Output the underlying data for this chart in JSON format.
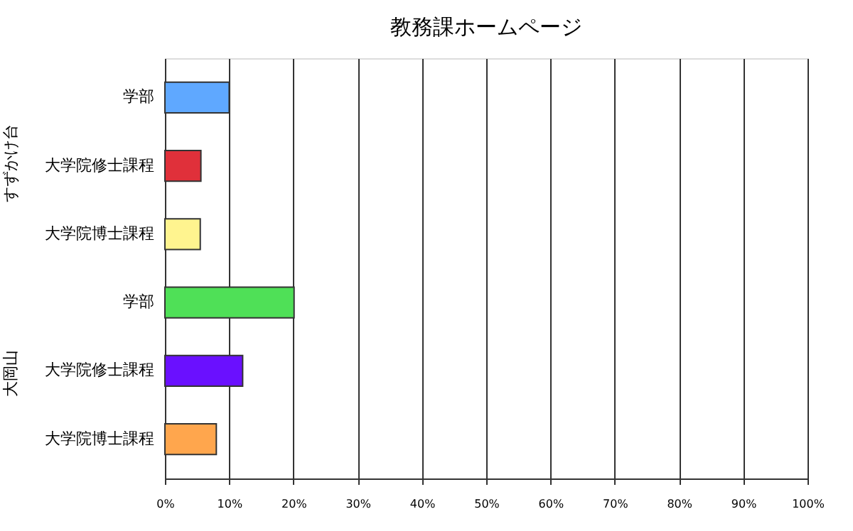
{
  "chart_data": {
    "type": "bar",
    "orientation": "horizontal",
    "title": "教務課ホームページ",
    "categories": [
      "学部",
      "大学院修士課程",
      "大学院博士課程",
      "学部",
      "大学院修士課程",
      "大学院博士課程"
    ],
    "values": [
      10,
      5.6,
      5.5,
      20.1,
      12.1,
      8.0
    ],
    "colors": [
      "#5fa8ff",
      "#e0303a",
      "#fff48f",
      "#4fe057",
      "#6a10ff",
      "#ffa64d"
    ],
    "xlim": [
      0,
      100
    ],
    "xticks": [
      {
        "value": 0,
        "label": "0%"
      },
      {
        "value": 10,
        "label": "10%"
      },
      {
        "value": 20,
        "label": "20%"
      },
      {
        "value": 30,
        "label": "30%"
      },
      {
        "value": 40,
        "label": "40%"
      },
      {
        "value": 50,
        "label": "50%"
      },
      {
        "value": 60,
        "label": "60%"
      },
      {
        "value": 70,
        "label": "70%"
      },
      {
        "value": 80,
        "label": "80%"
      },
      {
        "value": 90,
        "label": "90%"
      },
      {
        "value": 100,
        "label": "100%"
      }
    ],
    "annotations": [
      "すずかけ台",
      "大岡山"
    ],
    "grid": "x"
  }
}
